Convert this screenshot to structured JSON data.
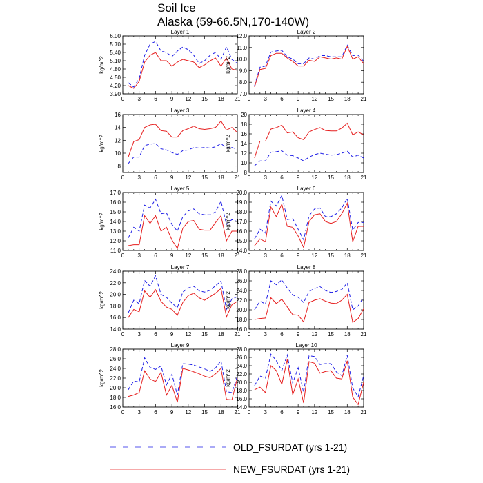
{
  "title": "Soil Ice",
  "subtitle": "Alaska (59-66.5N,170-140W)",
  "legend": {
    "placement": "bottom",
    "entries": [
      {
        "label": "OLD_FSURDAT (yrs 1-21)",
        "color": "#1e1ee6",
        "dash": "dashed"
      },
      {
        "label": "NEW_FSURDAT (yrs 1-21)",
        "color": "#e61e1e",
        "dash": "solid"
      }
    ]
  },
  "chart_data": [
    {
      "type": "line",
      "title": "Layer 1",
      "ylabel": "kg/m^2",
      "xlim": [
        0,
        21
      ],
      "xticks": [
        0,
        3,
        6,
        9,
        12,
        15,
        18,
        21
      ],
      "ylim": [
        3.9,
        6.0
      ],
      "yticks": [
        "3.90",
        "4.20",
        "4.50",
        "4.80",
        "5.10",
        "5.40",
        "5.70",
        "6.00"
      ],
      "x": [
        1,
        2,
        3,
        4,
        5,
        6,
        7,
        8,
        9,
        10,
        11,
        12,
        13,
        14,
        15,
        16,
        17,
        18,
        19,
        20,
        21
      ],
      "series": [
        {
          "name": "OLD_FSURDAT (yrs 1-21)",
          "values": [
            4.3,
            4.15,
            4.45,
            5.3,
            5.7,
            5.8,
            5.45,
            5.4,
            5.25,
            5.45,
            5.6,
            5.5,
            5.3,
            5.0,
            5.1,
            5.3,
            5.4,
            5.15,
            5.6,
            5.15,
            5.0
          ]
        },
        {
          "name": "NEW_FSURDAT (yrs 1-21)",
          "values": [
            4.2,
            4.1,
            4.35,
            5.05,
            5.3,
            5.4,
            5.1,
            5.1,
            4.9,
            5.05,
            5.15,
            5.1,
            5.05,
            4.85,
            4.95,
            5.1,
            5.2,
            4.9,
            5.2,
            4.8,
            4.75
          ]
        }
      ]
    },
    {
      "type": "line",
      "title": "Layer 2",
      "ylabel": "kg/m^2",
      "xlim": [
        0,
        21
      ],
      "xticks": [
        0,
        3,
        6,
        9,
        12,
        15,
        18,
        21
      ],
      "ylim": [
        7.0,
        12.0
      ],
      "yticks": [
        "7.0",
        "8.0",
        "9.0",
        "10.0",
        "11.0",
        "12.0"
      ],
      "x": [
        1,
        2,
        3,
        4,
        5,
        6,
        7,
        8,
        9,
        10,
        11,
        12,
        13,
        14,
        15,
        16,
        17,
        18,
        19,
        20,
        21
      ],
      "series": [
        {
          "name": "OLD_FSURDAT (yrs 1-21)",
          "values": [
            7.7,
            9.3,
            9.4,
            10.6,
            10.7,
            10.75,
            10.2,
            10.0,
            9.6,
            9.6,
            10.1,
            10.0,
            10.3,
            10.3,
            10.2,
            10.2,
            10.2,
            11.2,
            10.3,
            10.35,
            9.8
          ]
        },
        {
          "name": "NEW_FSURDAT (yrs 1-21)",
          "values": [
            7.6,
            9.1,
            9.2,
            10.3,
            10.5,
            10.5,
            10.1,
            9.8,
            9.4,
            9.4,
            9.9,
            9.8,
            10.2,
            10.1,
            10.0,
            10.1,
            10.0,
            11.1,
            10.0,
            10.2,
            9.6
          ]
        }
      ]
    },
    {
      "type": "line",
      "title": "Layer 3",
      "ylabel": "kg/m^2",
      "xlim": [
        0,
        21
      ],
      "xticks": [
        0,
        3,
        6,
        9,
        12,
        15,
        18,
        21
      ],
      "ylim": [
        7.0,
        16.0
      ],
      "yticks": [
        "8",
        "10",
        "12",
        "14",
        "16"
      ],
      "x": [
        1,
        2,
        3,
        4,
        5,
        6,
        7,
        8,
        9,
        10,
        11,
        12,
        13,
        14,
        15,
        16,
        17,
        18,
        19,
        20,
        21
      ],
      "series": [
        {
          "name": "OLD_FSURDAT (yrs 1-21)",
          "values": [
            8.4,
            9.4,
            9.4,
            11.2,
            11.4,
            11.5,
            10.7,
            10.5,
            10.1,
            9.8,
            10.4,
            10.5,
            10.9,
            10.8,
            10.9,
            10.8,
            11.0,
            11.5,
            10.8,
            10.9,
            10.6
          ]
        },
        {
          "name": "NEW_FSURDAT (yrs 1-21)",
          "values": [
            9.4,
            11.8,
            12.1,
            14.0,
            14.4,
            14.5,
            13.5,
            13.4,
            12.5,
            12.5,
            13.5,
            13.8,
            14.2,
            13.8,
            13.7,
            13.8,
            14.0,
            15.0,
            13.6,
            14.0,
            13.2
          ]
        }
      ]
    },
    {
      "type": "line",
      "title": "Layer 4",
      "ylabel": "kg/m^2",
      "xlim": [
        0,
        21
      ],
      "xticks": [
        0,
        3,
        6,
        9,
        12,
        15,
        18,
        21
      ],
      "ylim": [
        8.0,
        20.0
      ],
      "yticks": [
        "8",
        "10",
        "12",
        "14",
        "16",
        "18",
        "20"
      ],
      "x": [
        1,
        2,
        3,
        4,
        5,
        6,
        7,
        8,
        9,
        10,
        11,
        12,
        13,
        14,
        15,
        16,
        17,
        18,
        19,
        20,
        21
      ],
      "series": [
        {
          "name": "OLD_FSURDAT (yrs 1-21)",
          "values": [
            9.4,
            10.4,
            10.4,
            12.2,
            12.3,
            12.5,
            11.6,
            11.5,
            11.0,
            10.4,
            11.2,
            11.7,
            12.0,
            11.8,
            11.6,
            11.7,
            12.0,
            12.4,
            11.2,
            11.6,
            11.0
          ]
        },
        {
          "name": "NEW_FSURDAT (yrs 1-21)",
          "values": [
            11.0,
            14.5,
            14.5,
            17.0,
            17.3,
            17.8,
            16.2,
            16.4,
            15.2,
            14.8,
            16.4,
            16.9,
            17.3,
            16.7,
            16.6,
            16.6,
            17.2,
            18.2,
            15.8,
            16.4,
            15.8
          ]
        }
      ]
    },
    {
      "type": "line",
      "title": "Layer 5",
      "ylabel": "kg/m^2",
      "xlim": [
        0,
        21
      ],
      "xticks": [
        0,
        3,
        6,
        9,
        12,
        15,
        18,
        21
      ],
      "ylim": [
        11.0,
        17.0
      ],
      "yticks": [
        "11.0",
        "12.0",
        "13.0",
        "14.0",
        "15.0",
        "16.0",
        "17.0"
      ],
      "x": [
        1,
        2,
        3,
        4,
        5,
        6,
        7,
        8,
        9,
        10,
        11,
        12,
        13,
        14,
        15,
        16,
        17,
        18,
        19,
        20,
        21
      ],
      "series": [
        {
          "name": "OLD_FSURDAT (yrs 1-21)",
          "values": [
            12.3,
            13.4,
            13.0,
            15.7,
            15.4,
            16.3,
            14.8,
            14.9,
            13.7,
            13.0,
            14.5,
            15.1,
            15.3,
            14.8,
            14.7,
            14.7,
            15.0,
            16.1,
            13.7,
            14.2,
            14.0
          ]
        },
        {
          "name": "NEW_FSURDAT (yrs 1-21)",
          "values": [
            11.5,
            11.6,
            11.6,
            14.6,
            13.8,
            14.6,
            13.0,
            13.4,
            12.1,
            11.2,
            13.3,
            14.0,
            14.1,
            13.2,
            13.1,
            13.1,
            13.9,
            14.6,
            12.0,
            13.0,
            13.0
          ]
        }
      ]
    },
    {
      "type": "line",
      "title": "Layer 6",
      "ylabel": "kg/m^2",
      "xlim": [
        0,
        21
      ],
      "xticks": [
        0,
        3,
        6,
        9,
        12,
        15,
        18,
        21
      ],
      "ylim": [
        14.0,
        20.0
      ],
      "yticks": [
        "14.0",
        "15.0",
        "16.0",
        "17.0",
        "18.0",
        "19.0",
        "20.0"
      ],
      "x": [
        1,
        2,
        3,
        4,
        5,
        6,
        7,
        8,
        9,
        10,
        11,
        12,
        13,
        14,
        15,
        16,
        17,
        18,
        19,
        20,
        21
      ],
      "series": [
        {
          "name": "OLD_FSURDAT (yrs 1-21)",
          "values": [
            15.2,
            16.2,
            15.8,
            19.1,
            18.6,
            19.7,
            17.2,
            17.3,
            16.2,
            15.1,
            17.6,
            18.3,
            18.4,
            17.5,
            17.5,
            17.8,
            18.4,
            19.4,
            16.1,
            16.9,
            16.9
          ]
        },
        {
          "name": "NEW_FSURDAT (yrs 1-21)",
          "values": [
            14.5,
            15.2,
            14.9,
            18.5,
            17.5,
            18.8,
            16.5,
            16.4,
            15.5,
            14.3,
            17.0,
            17.7,
            17.8,
            17.0,
            16.8,
            17.0,
            17.8,
            18.9,
            14.9,
            16.5,
            16.5
          ]
        }
      ]
    },
    {
      "type": "line",
      "title": "Layer 7",
      "ylabel": "kg/m^2",
      "xlim": [
        0,
        21
      ],
      "xticks": [
        0,
        3,
        6,
        9,
        12,
        15,
        18,
        21
      ],
      "ylim": [
        14.0,
        24.0
      ],
      "yticks": [
        "14.0",
        "16.0",
        "18.0",
        "20.0",
        "22.0",
        "24.0"
      ],
      "x": [
        1,
        2,
        3,
        4,
        5,
        6,
        7,
        8,
        9,
        10,
        11,
        12,
        13,
        14,
        15,
        16,
        17,
        18,
        19,
        20,
        21
      ],
      "series": [
        {
          "name": "OLD_FSURDAT (yrs 1-21)",
          "values": [
            16.8,
            19.0,
            18.4,
            22.4,
            21.4,
            23.2,
            20.0,
            19.5,
            18.5,
            17.7,
            20.4,
            21.1,
            21.4,
            20.6,
            20.4,
            20.7,
            21.5,
            22.3,
            17.4,
            19.2,
            19.6
          ]
        },
        {
          "name": "NEW_FSURDAT (yrs 1-21)",
          "values": [
            16.0,
            17.4,
            17.0,
            20.6,
            19.5,
            20.8,
            18.8,
            17.8,
            17.4,
            16.4,
            18.6,
            19.8,
            20.2,
            19.4,
            19.0,
            19.6,
            20.2,
            21.0,
            16.1,
            18.2,
            18.8
          ]
        }
      ]
    },
    {
      "type": "line",
      "title": "Layer 8",
      "ylabel": "kg/m^2",
      "xlim": [
        0,
        21
      ],
      "xticks": [
        0,
        3,
        6,
        9,
        12,
        15,
        18,
        21
      ],
      "ylim": [
        16.0,
        28.0
      ],
      "yticks": [
        "16.0",
        "18.0",
        "20.0",
        "22.0",
        "24.0",
        "26.0",
        "28.0"
      ],
      "x": [
        1,
        2,
        3,
        4,
        5,
        6,
        7,
        8,
        9,
        10,
        11,
        12,
        13,
        14,
        15,
        16,
        17,
        18,
        19,
        20,
        21
      ],
      "series": [
        {
          "name": "OLD_FSURDAT (yrs 1-21)",
          "values": [
            20.0,
            21.8,
            21.2,
            26.0,
            25.2,
            26.2,
            24.5,
            23.1,
            22.6,
            21.5,
            23.8,
            24.4,
            24.8,
            24.0,
            23.6,
            23.8,
            24.2,
            25.6,
            20.0,
            20.8,
            22.6
          ]
        },
        {
          "name": "NEW_FSURDAT (yrs 1-21)",
          "values": [
            18.0,
            18.2,
            18.3,
            22.5,
            21.3,
            22.2,
            20.6,
            19.0,
            18.9,
            17.5,
            21.5,
            22.0,
            22.3,
            21.8,
            21.4,
            21.3,
            22.0,
            23.2,
            17.4,
            18.2,
            20.2
          ]
        }
      ]
    },
    {
      "type": "line",
      "title": "Layer 9",
      "ylabel": "kg/m^2",
      "xlim": [
        0,
        21
      ],
      "xticks": [
        0,
        3,
        6,
        9,
        12,
        15,
        18,
        21
      ],
      "ylim": [
        16.0,
        28.0
      ],
      "yticks": [
        "16.0",
        "18.0",
        "20.0",
        "22.0",
        "24.0",
        "26.0",
        "28.0"
      ],
      "x": [
        1,
        2,
        3,
        4,
        5,
        6,
        7,
        8,
        9,
        10,
        11,
        12,
        13,
        14,
        15,
        16,
        17,
        18,
        19,
        20,
        21
      ],
      "series": [
        {
          "name": "OLD_FSURDAT (yrs 1-21)",
          "values": [
            19.6,
            21.4,
            21.2,
            26.2,
            24.2,
            23.8,
            24.5,
            20.6,
            22.8,
            18.5,
            25.0,
            24.9,
            24.7,
            24.3,
            23.9,
            23.4,
            24.1,
            25.6,
            19.2,
            19.0,
            22.4
          ]
        },
        {
          "name": "NEW_FSURDAT (yrs 1-21)",
          "values": [
            18.2,
            18.5,
            19.0,
            23.5,
            21.8,
            21.3,
            23.2,
            18.5,
            20.5,
            17.0,
            24.0,
            23.7,
            23.3,
            22.9,
            22.4,
            22.1,
            22.9,
            24.0,
            17.6,
            17.5,
            22.0
          ]
        }
      ]
    },
    {
      "type": "line",
      "title": "Layer 10",
      "ylabel": "kg/m^2",
      "xlim": [
        0,
        21
      ],
      "xticks": [
        0,
        3,
        6,
        9,
        12,
        15,
        18,
        21
      ],
      "ylim": [
        14.0,
        28.0
      ],
      "yticks": [
        "14.0",
        "16.0",
        "18.0",
        "20.0",
        "22.0",
        "24.0",
        "26.0",
        "28.0"
      ],
      "x": [
        1,
        2,
        3,
        4,
        5,
        6,
        7,
        8,
        9,
        10,
        11,
        12,
        13,
        14,
        15,
        16,
        17,
        18,
        19,
        20,
        21
      ],
      "series": [
        {
          "name": "OLD_FSURDAT (yrs 1-21)",
          "values": [
            19.2,
            21.5,
            21.0,
            26.8,
            25.2,
            22.8,
            26.6,
            19.8,
            23.5,
            17.5,
            26.4,
            26.2,
            24.3,
            24.5,
            24.5,
            22.5,
            21.6,
            26.5,
            18.6,
            16.5,
            21.6
          ]
        },
        {
          "name": "NEW_FSURDAT (yrs 1-21)",
          "values": [
            18.2,
            18.8,
            17.5,
            24.0,
            22.8,
            19.5,
            25.5,
            17.0,
            20.8,
            15.0,
            25.0,
            24.6,
            22.2,
            22.6,
            22.8,
            21.0,
            20.8,
            25.2,
            16.4,
            14.6,
            20.0
          ]
        }
      ]
    }
  ]
}
